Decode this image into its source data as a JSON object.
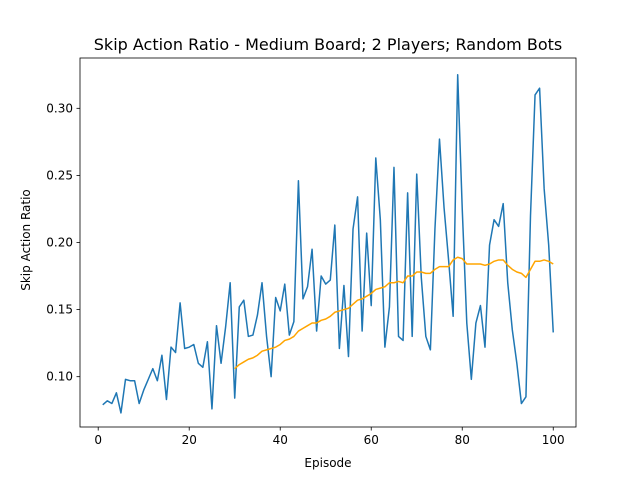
{
  "chart_data": {
    "type": "line",
    "title": "Skip Action Ratio - Medium Board; 2 Players; Random Bots",
    "xlabel": "Episode",
    "ylabel": "Skip Action Ratio",
    "xlim": [
      -4,
      105
    ],
    "ylim": [
      0.0625,
      0.3375
    ],
    "xticks": [
      0,
      20,
      40,
      60,
      80,
      100
    ],
    "xtick_labels": [
      "0",
      "20",
      "40",
      "60",
      "80",
      "100"
    ],
    "yticks": [
      0.1,
      0.15,
      0.2,
      0.25,
      0.3
    ],
    "ytick_labels": [
      "0.10",
      "0.15",
      "0.20",
      "0.25",
      "0.30"
    ],
    "grid": false,
    "series": [
      {
        "color": "#1f77b4",
        "x": [
          1,
          2,
          3,
          4,
          5,
          6,
          7,
          8,
          9,
          10,
          11,
          12,
          13,
          14,
          15,
          16,
          17,
          18,
          19,
          20,
          21,
          22,
          23,
          24,
          25,
          26,
          27,
          28,
          29,
          30,
          31,
          32,
          33,
          34,
          35,
          36,
          37,
          38,
          39,
          40,
          41,
          42,
          43,
          44,
          45,
          46,
          47,
          48,
          49,
          50,
          51,
          52,
          53,
          54,
          55,
          56,
          57,
          58,
          59,
          60,
          61,
          62,
          63,
          64,
          65,
          66,
          67,
          68,
          69,
          70,
          71,
          72,
          73,
          74,
          75,
          76,
          77,
          78,
          79,
          80,
          81,
          82,
          83,
          84,
          85,
          86,
          87,
          88,
          89,
          90,
          91,
          92,
          93,
          94,
          95,
          96,
          97,
          98,
          99,
          100
        ],
        "values": [
          0.079,
          0.082,
          0.08,
          0.088,
          0.073,
          0.098,
          0.097,
          0.097,
          0.08,
          0.09,
          0.098,
          0.106,
          0.097,
          0.116,
          0.083,
          0.122,
          0.118,
          0.155,
          0.121,
          0.122,
          0.124,
          0.11,
          0.107,
          0.126,
          0.076,
          0.138,
          0.11,
          0.137,
          0.17,
          0.084,
          0.152,
          0.157,
          0.13,
          0.131,
          0.146,
          0.17,
          0.13,
          0.1,
          0.159,
          0.149,
          0.169,
          0.131,
          0.141,
          0.246,
          0.158,
          0.167,
          0.195,
          0.134,
          0.175,
          0.169,
          0.172,
          0.213,
          0.121,
          0.168,
          0.115,
          0.21,
          0.234,
          0.134,
          0.207,
          0.153,
          0.263,
          0.217,
          0.122,
          0.152,
          0.256,
          0.13,
          0.127,
          0.237,
          0.13,
          0.251,
          0.174,
          0.13,
          0.12,
          0.21,
          0.277,
          0.226,
          0.187,
          0.145,
          0.325,
          0.225,
          0.14,
          0.098,
          0.14,
          0.153,
          0.122,
          0.198,
          0.217,
          0.212,
          0.229,
          0.17,
          0.135,
          0.11,
          0.08,
          0.085,
          0.22,
          0.31,
          0.315,
          0.24,
          0.198,
          0.133
        ]
      },
      {
        "color": "#ffa500",
        "x": [
          30,
          31,
          32,
          33,
          34,
          35,
          36,
          37,
          38,
          39,
          40,
          41,
          42,
          43,
          44,
          45,
          46,
          47,
          48,
          49,
          50,
          51,
          52,
          53,
          54,
          55,
          56,
          57,
          58,
          59,
          60,
          61,
          62,
          63,
          64,
          65,
          66,
          67,
          68,
          69,
          70,
          71,
          72,
          73,
          74,
          75,
          76,
          77,
          78,
          79,
          80,
          81,
          82,
          83,
          84,
          85,
          86,
          87,
          88,
          89,
          90,
          91,
          92,
          93,
          94,
          95,
          96,
          97,
          98,
          99,
          100
        ],
        "values": [
          0.106,
          0.109,
          0.111,
          0.113,
          0.114,
          0.116,
          0.119,
          0.12,
          0.121,
          0.122,
          0.124,
          0.127,
          0.128,
          0.13,
          0.134,
          0.136,
          0.138,
          0.14,
          0.14,
          0.142,
          0.143,
          0.145,
          0.148,
          0.149,
          0.15,
          0.151,
          0.154,
          0.157,
          0.158,
          0.16,
          0.162,
          0.165,
          0.166,
          0.167,
          0.17,
          0.17,
          0.171,
          0.17,
          0.175,
          0.175,
          0.178,
          0.178,
          0.177,
          0.177,
          0.18,
          0.182,
          0.182,
          0.182,
          0.187,
          0.189,
          0.188,
          0.184,
          0.184,
          0.184,
          0.184,
          0.183,
          0.184,
          0.186,
          0.187,
          0.187,
          0.183,
          0.18,
          0.178,
          0.177,
          0.174,
          0.18,
          0.186,
          0.186,
          0.187,
          0.186,
          0.184
        ]
      }
    ]
  }
}
